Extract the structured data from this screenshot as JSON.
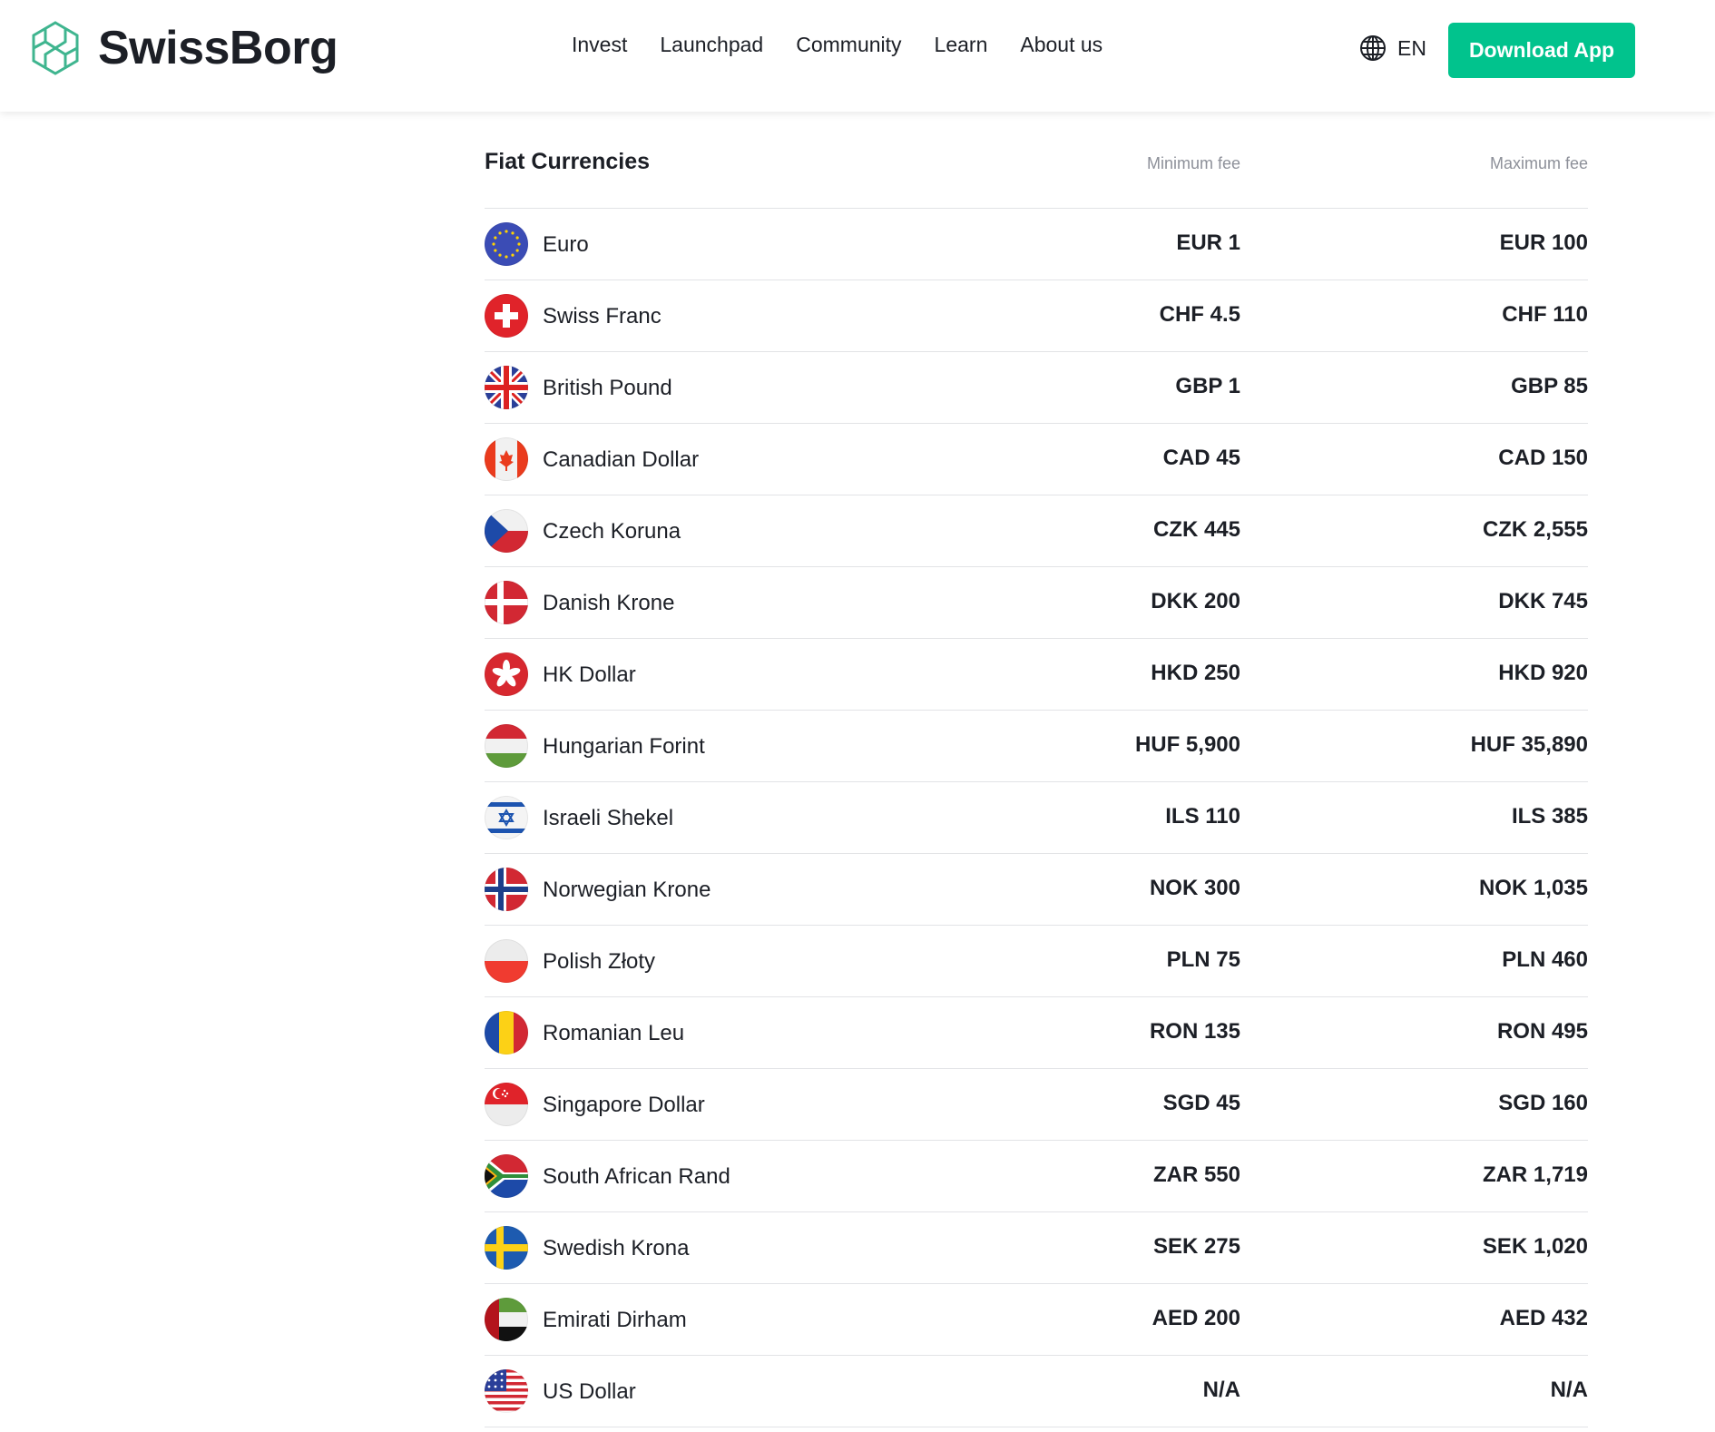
{
  "header": {
    "logo_text": "SwissBorg",
    "nav": [
      "Invest",
      "Launchpad",
      "Community",
      "Learn",
      "About us"
    ],
    "language": "EN",
    "download_label": "Download App",
    "accent_color": "#01c38d"
  },
  "table": {
    "title": "Fiat Currencies",
    "min_header": "Minimum fee",
    "max_header": "Maximum fee",
    "rows": [
      {
        "flag": "eu",
        "name": "Euro",
        "min": "EUR 1",
        "max": "EUR 100"
      },
      {
        "flag": "ch",
        "name": "Swiss Franc",
        "min": "CHF 4.5",
        "max": "CHF 110"
      },
      {
        "flag": "gb",
        "name": "British Pound",
        "min": "GBP 1",
        "max": "GBP 85"
      },
      {
        "flag": "ca",
        "name": "Canadian Dollar",
        "min": "CAD 45",
        "max": "CAD 150"
      },
      {
        "flag": "cz",
        "name": "Czech Koruna",
        "min": "CZK 445",
        "max": "CZK 2,555"
      },
      {
        "flag": "dk",
        "name": "Danish Krone",
        "min": "DKK 200",
        "max": "DKK 745"
      },
      {
        "flag": "hk",
        "name": "HK Dollar",
        "min": "HKD 250",
        "max": "HKD 920"
      },
      {
        "flag": "hu",
        "name": "Hungarian Forint",
        "min": "HUF 5,900",
        "max": "HUF 35,890"
      },
      {
        "flag": "il",
        "name": "Israeli Shekel",
        "min": "ILS 110",
        "max": "ILS 385"
      },
      {
        "flag": "no",
        "name": "Norwegian Krone",
        "min": "NOK 300",
        "max": "NOK 1,035"
      },
      {
        "flag": "pl",
        "name": "Polish Złoty",
        "min": "PLN 75",
        "max": "PLN 460"
      },
      {
        "flag": "ro",
        "name": "Romanian Leu",
        "min": "RON 135",
        "max": "RON 495"
      },
      {
        "flag": "sg",
        "name": "Singapore Dollar",
        "min": "SGD 45",
        "max": "SGD 160"
      },
      {
        "flag": "za",
        "name": "South African Rand",
        "min": "ZAR 550",
        "max": "ZAR 1,719"
      },
      {
        "flag": "se",
        "name": "Swedish Krona",
        "min": "SEK 275",
        "max": "SEK 1,020"
      },
      {
        "flag": "ae",
        "name": "Emirati Dirham",
        "min": "AED 200",
        "max": "AED 432"
      },
      {
        "flag": "us",
        "name": "US Dollar",
        "min": "N/A",
        "max": "N/A"
      }
    ]
  }
}
